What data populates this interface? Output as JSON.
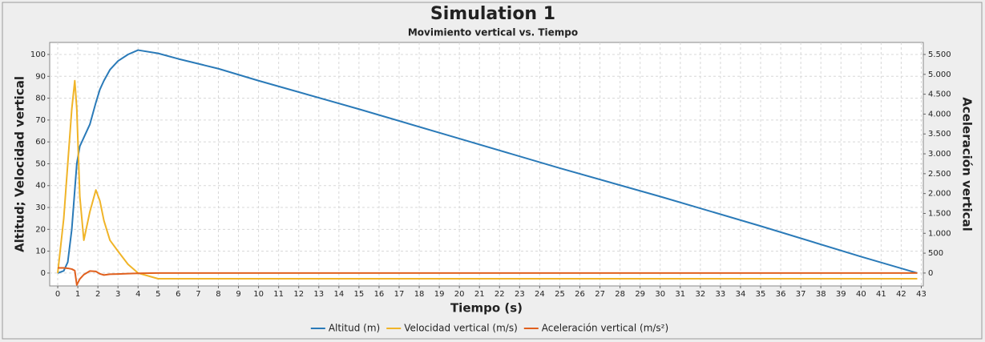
{
  "chart_data": {
    "type": "line",
    "title": "Simulation 1",
    "subtitle": "Movimiento vertical vs. Tiempo",
    "x_label": "Tiempo (s)",
    "y_label": "Altitud; Velocidad vertical",
    "y2_label": "Aceleración vertical",
    "x": [
      0,
      0.3,
      0.5,
      0.7,
      0.85,
      0.95,
      1.1,
      1.3,
      1.6,
      1.9,
      2.1,
      2.3,
      2.6,
      3,
      3.5,
      4,
      5,
      6,
      8,
      10,
      15,
      20,
      25,
      30,
      35,
      40,
      42.8
    ],
    "series": [
      {
        "name": "Altitud (m)",
        "color": "#2a7ab8",
        "values": [
          0,
          1,
          5,
          20,
          38,
          50,
          58,
          62,
          68,
          78,
          84,
          88,
          93,
          97,
          100,
          102,
          100.5,
          98,
          93.5,
          88,
          75,
          61.5,
          48,
          35,
          21.5,
          7.5,
          0
        ]
      },
      {
        "name": "Velocidad vertical (m/s)",
        "color": "#f0b428",
        "values": [
          0,
          25,
          50,
          75,
          88,
          75,
          35,
          15,
          28,
          38,
          33,
          24,
          15,
          10,
          4,
          0,
          -2.6,
          -2.6,
          -2.6,
          -2.6,
          -2.6,
          -2.6,
          -2.6,
          -2.6,
          -2.6,
          -2.6,
          -2.6
        ]
      },
      {
        "name": "Aceleración vertical (m/s²)",
        "color": "#e0601e",
        "axis": "y2",
        "values": [
          130,
          130,
          120,
          100,
          60,
          -300,
          -150,
          -40,
          50,
          40,
          -20,
          -50,
          -30,
          -25,
          -15,
          -8,
          0,
          0,
          0,
          0,
          0,
          0,
          0,
          0,
          0,
          0,
          0
        ]
      }
    ],
    "xlim": [
      -0.4,
      43.1
    ],
    "xticks": [
      0,
      1,
      2,
      3,
      4,
      5,
      6,
      7,
      8,
      9,
      10,
      11,
      12,
      13,
      14,
      15,
      16,
      17,
      18,
      19,
      20,
      21,
      22,
      23,
      24,
      25,
      26,
      27,
      28,
      29,
      30,
      31,
      32,
      33,
      34,
      35,
      36,
      37,
      38,
      39,
      40,
      41,
      42,
      43
    ],
    "ylim": [
      -5.9,
      105.5
    ],
    "yticks": [
      0,
      10,
      20,
      30,
      40,
      50,
      60,
      70,
      80,
      90,
      100
    ],
    "y2lim": [
      -324.5,
      5802.5
    ],
    "y2ticks": [
      0,
      500,
      {
        "value": 1000,
        "label": "1.000"
      },
      {
        "value": 1500,
        "label": "1.500"
      },
      {
        "value": 2000,
        "label": "2.000"
      },
      {
        "value": 2500,
        "label": "2.500"
      },
      {
        "value": 3000,
        "label": "3.000"
      },
      {
        "value": 3500,
        "label": "3.500"
      },
      {
        "value": 4000,
        "label": "4.000"
      },
      {
        "value": 4500,
        "label": "4.500"
      },
      {
        "value": 5000,
        "label": "5.000"
      },
      {
        "value": 5500,
        "label": "5.500"
      }
    ],
    "grid": true,
    "legend": "bottom"
  }
}
